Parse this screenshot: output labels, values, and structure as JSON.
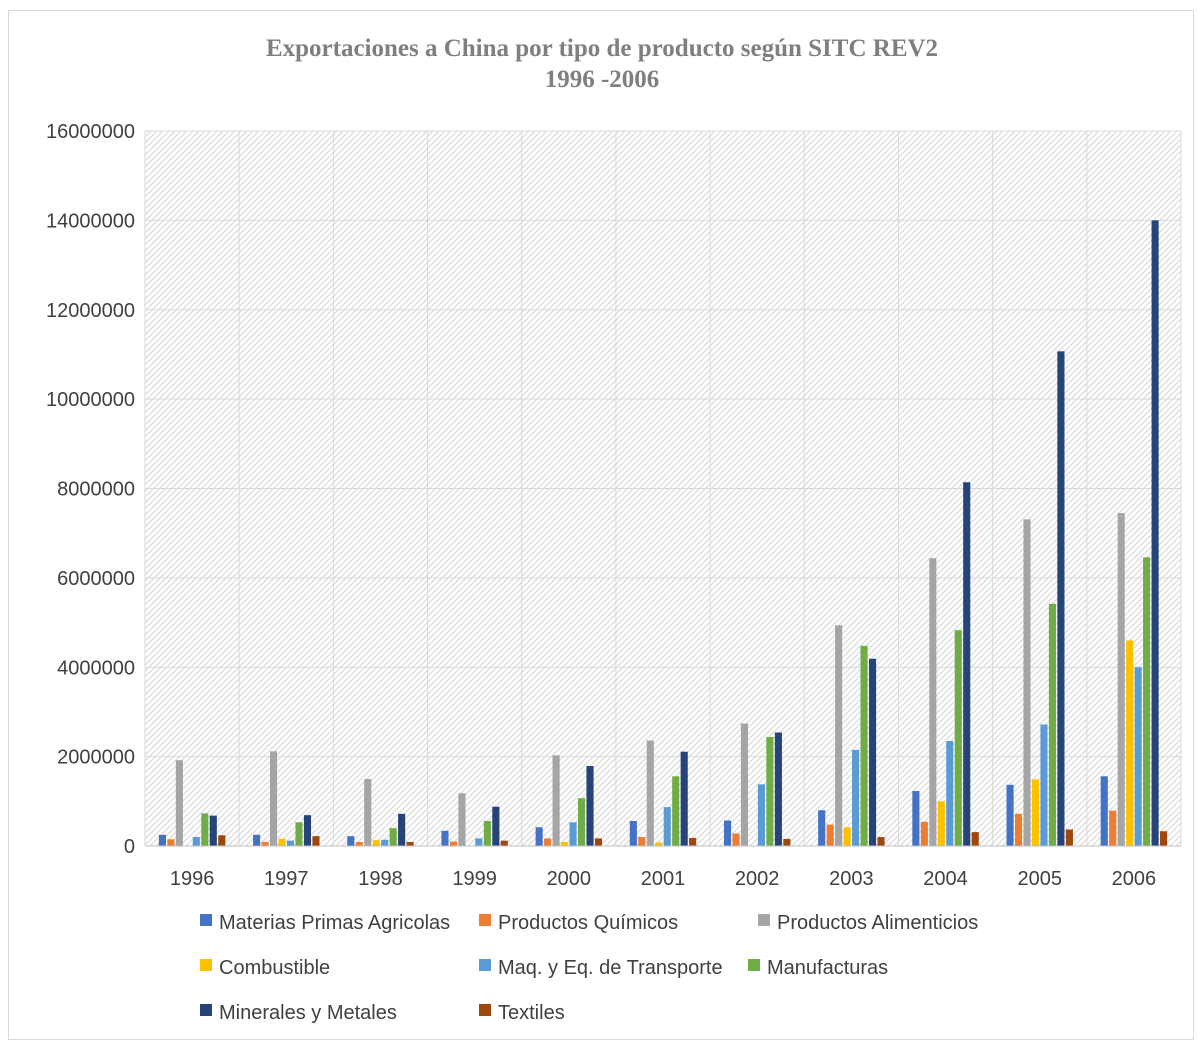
{
  "chart_data": {
    "type": "bar",
    "title": "Exportaciones a China por tipo de producto según SITC REV2",
    "subtitle": "1996 -2006",
    "xlabel": "",
    "ylabel": "",
    "ylim": [
      0,
      16000000
    ],
    "yticks": [
      0,
      2000000,
      4000000,
      6000000,
      8000000,
      10000000,
      12000000,
      14000000,
      16000000
    ],
    "ytick_labels": [
      "0",
      "2000000",
      "4000000",
      "6000000",
      "8000000",
      "10000000",
      "12000000",
      "14000000",
      "16000000"
    ],
    "grid": true,
    "legend_position": "bottom",
    "categories": [
      "1996",
      "1997",
      "1998",
      "1999",
      "2000",
      "2001",
      "2002",
      "2003",
      "2004",
      "2005",
      "2006"
    ],
    "series": [
      {
        "name": "Materias Primas Agricolas",
        "color": "#4472c4",
        "values": [
          250000,
          250000,
          220000,
          340000,
          420000,
          560000,
          570000,
          800000,
          1230000,
          1370000,
          1560000
        ]
      },
      {
        "name": "Productos Químicos",
        "color": "#ed7d31",
        "values": [
          150000,
          90000,
          90000,
          100000,
          170000,
          200000,
          280000,
          480000,
          540000,
          720000,
          790000
        ]
      },
      {
        "name": "Productos Alimenticios",
        "color": "#a5a5a5",
        "values": [
          1920000,
          2120000,
          1500000,
          1180000,
          2030000,
          2360000,
          2740000,
          4940000,
          6440000,
          7310000,
          7450000
        ]
      },
      {
        "name": "Combustible",
        "color": "#ffc000",
        "values": [
          0,
          160000,
          130000,
          0,
          90000,
          80000,
          0,
          420000,
          1000000,
          1490000,
          4600000
        ]
      },
      {
        "name": "Maq. y Eq. de Transporte",
        "color": "#5b9bd5",
        "values": [
          200000,
          120000,
          140000,
          170000,
          530000,
          870000,
          1380000,
          2150000,
          2350000,
          2720000,
          4000000
        ]
      },
      {
        "name": "Manufacturas",
        "color": "#70ad47",
        "values": [
          730000,
          530000,
          400000,
          560000,
          1070000,
          1560000,
          2440000,
          4480000,
          4830000,
          5420000,
          6460000
        ]
      },
      {
        "name": "Minerales y Metales",
        "color": "#264478",
        "values": [
          680000,
          690000,
          720000,
          880000,
          1790000,
          2110000,
          2540000,
          4190000,
          8140000,
          11070000,
          14000000
        ]
      },
      {
        "name": "Textiles",
        "color": "#9e480e",
        "values": [
          240000,
          220000,
          90000,
          120000,
          170000,
          180000,
          160000,
          200000,
          310000,
          370000,
          330000
        ]
      }
    ]
  }
}
